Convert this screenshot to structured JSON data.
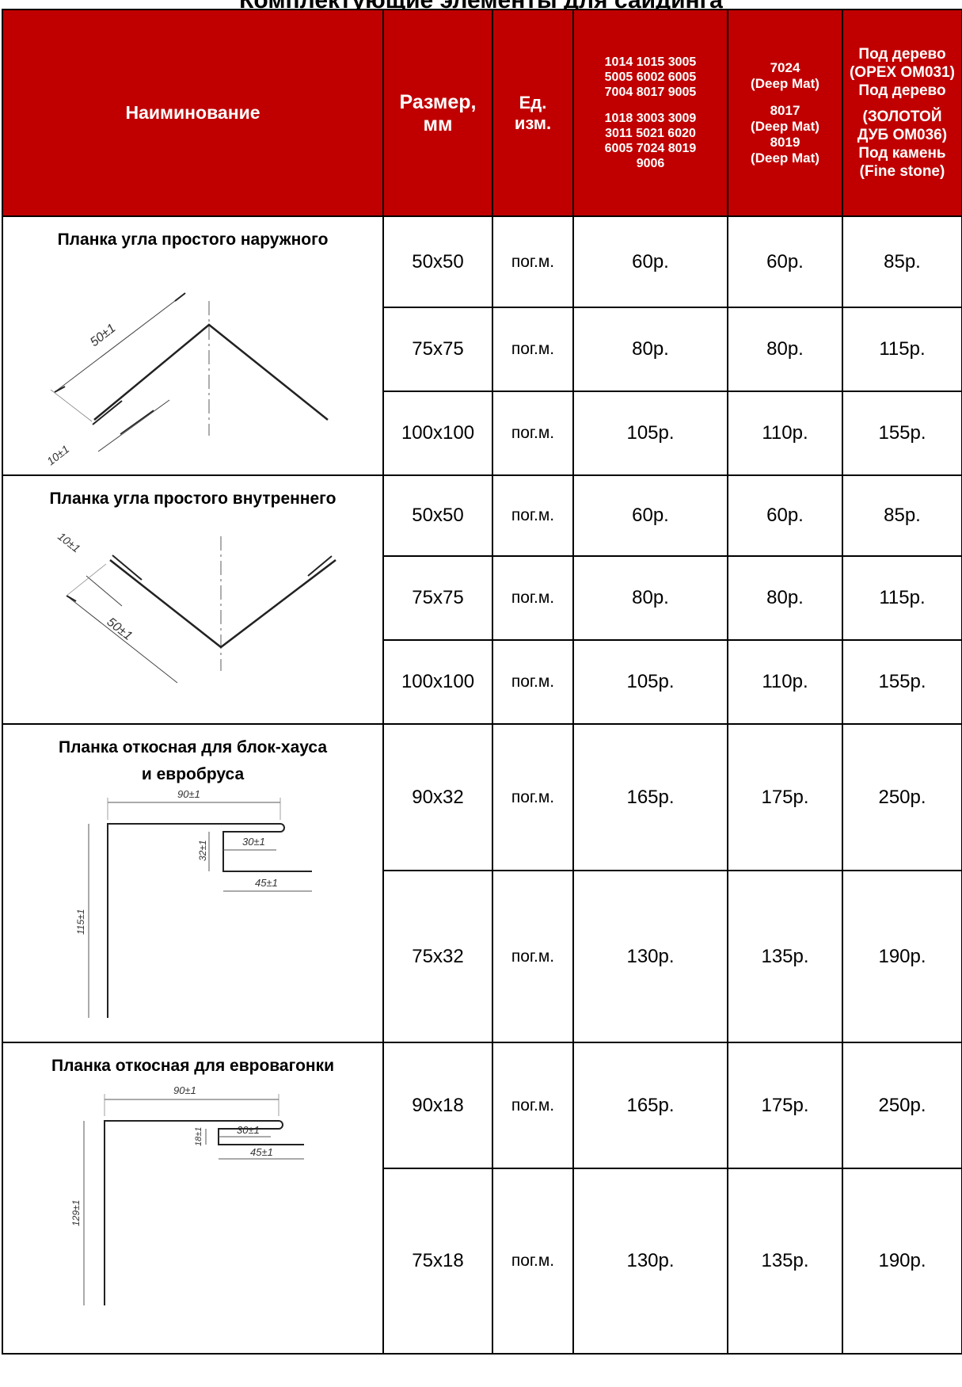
{
  "title": "Комплектующие элементы для сайдинга",
  "header": {
    "name": "Наиминование",
    "size": [
      "Размер,",
      "мм"
    ],
    "unit": [
      "Ед.",
      "изм."
    ],
    "colors1_a": [
      "1014 1015 3005",
      "5005 6002 6005",
      "7004 8017 9005"
    ],
    "colors1_b": [
      "1018 3003 3009",
      "3011 5021 6020",
      "6005 7024 8019",
      "9006"
    ],
    "colors2_a": [
      "7024",
      "(Deep Mat)"
    ],
    "colors2_b": [
      "8017",
      "(Deep Mat)",
      "8019",
      "(Deep Mat)"
    ],
    "colors3": [
      "Под дерево",
      "(ОРЕХ ОМ031)",
      "Под дерево",
      "",
      "(ЗОЛОТОЙ",
      "ДУБ ОМ036)",
      "Под камень",
      "(Fine stone)"
    ]
  },
  "products": [
    {
      "name": "Планка угла простого наружного",
      "drawing_labels": [
        "50±1",
        "10±1"
      ],
      "rows": [
        {
          "size": "50x50",
          "unit": "пог.м.",
          "p1": "60р.",
          "p2": "60р.",
          "p3": "85р."
        },
        {
          "size": "75x75",
          "unit": "пог.м.",
          "p1": "80р.",
          "p2": "80р.",
          "p3": "115р."
        },
        {
          "size": "100x100",
          "unit": "пог.м.",
          "p1": "105р.",
          "p2": "110р.",
          "p3": "155р."
        }
      ]
    },
    {
      "name": "Планка угла простого внутреннего",
      "drawing_labels": [
        "10±1",
        "50±1"
      ],
      "rows": [
        {
          "size": "50x50",
          "unit": "пог.м.",
          "p1": "60р.",
          "p2": "60р.",
          "p3": "85р."
        },
        {
          "size": "75x75",
          "unit": "пог.м.",
          "p1": "80р.",
          "p2": "80р.",
          "p3": "115р."
        },
        {
          "size": "100x100",
          "unit": "пог.м.",
          "p1": "105р.",
          "p2": "110р.",
          "p3": "155р."
        }
      ]
    },
    {
      "name": [
        "Планка откосная для блок-хауса",
        "и евробруса"
      ],
      "drawing_labels": [
        "90±1",
        "30±1",
        "32±1",
        "45±1",
        "115±1"
      ],
      "rows": [
        {
          "size": "90x32",
          "unit": "пог.м.",
          "p1": "165р.",
          "p2": "175р.",
          "p3": "250р."
        },
        {
          "size": "75x32",
          "unit": "пог.м.",
          "p1": "130р.",
          "p2": "135р.",
          "p3": "190р."
        }
      ]
    },
    {
      "name": "Планка откосная для евровагонки",
      "drawing_labels": [
        "90±1",
        "30±1",
        "18±1",
        "45±1",
        "129±1"
      ],
      "rows": [
        {
          "size": "90x18",
          "unit": "пог.м.",
          "p1": "165р.",
          "p2": "175р.",
          "p3": "250р."
        },
        {
          "size": "75x18",
          "unit": "пог.м.",
          "p1": "130р.",
          "p2": "135р.",
          "p3": "190р."
        }
      ]
    }
  ]
}
